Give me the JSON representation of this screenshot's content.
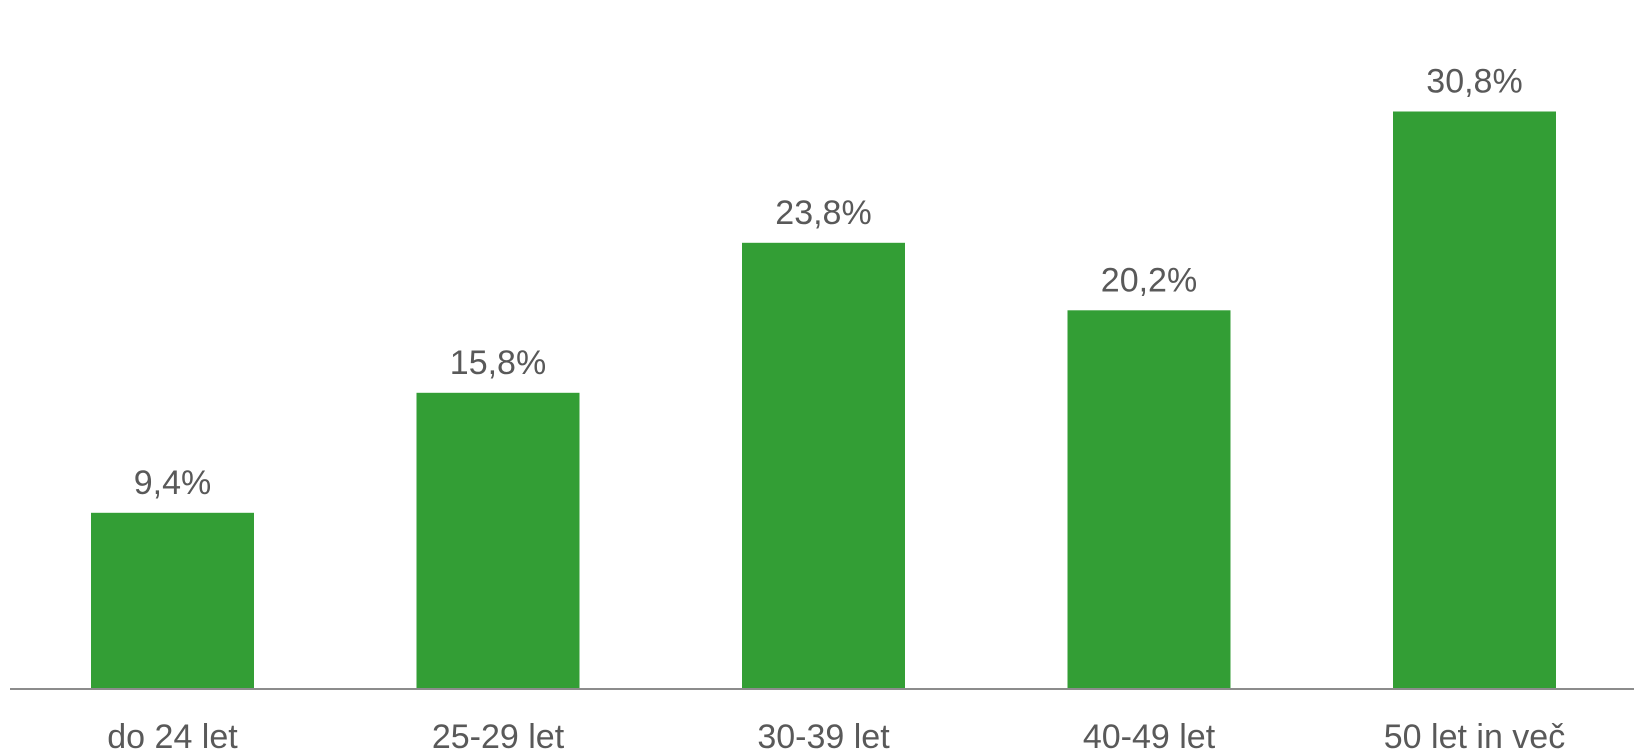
{
  "chart_data": {
    "type": "bar",
    "categories": [
      "do 24 let",
      "25-29 let",
      "30-39 let",
      "40-49 let",
      "50 let in več"
    ],
    "values": [
      9.4,
      15.8,
      23.8,
      20.2,
      30.8
    ],
    "value_labels": [
      "9,4%",
      "15,8%",
      "23,8%",
      "20,2%",
      "30,8%"
    ],
    "title": "",
    "xlabel": "",
    "ylabel": "",
    "ylim": [
      0,
      33.6
    ],
    "grid": false,
    "legend": "none",
    "colors": {
      "bar": "#339E35",
      "axis": "#8C8C8C",
      "text": "#595959"
    }
  }
}
